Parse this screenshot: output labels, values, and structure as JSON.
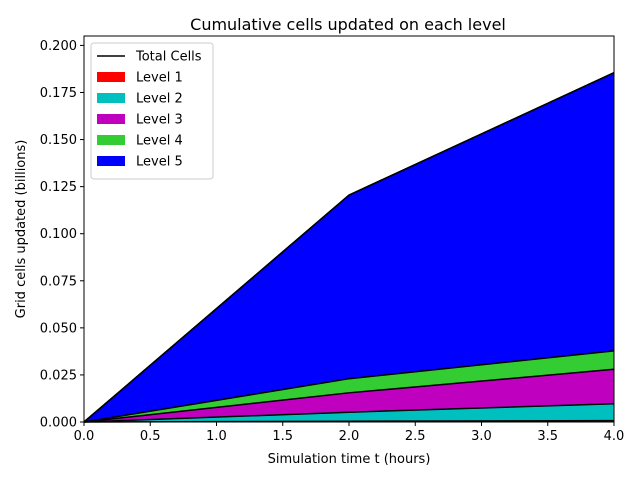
{
  "chart_data": {
    "type": "area",
    "title": "Cumulative cells updated on each level",
    "xlabel": "Simulation time t (hours)",
    "ylabel": "Grid cells updated (billions)",
    "xlim": [
      0.0,
      4.0
    ],
    "ylim": [
      0.0,
      0.205
    ],
    "x": [
      0.0,
      2.0,
      4.0
    ],
    "xticks": [
      "0.0",
      "0.5",
      "1.0",
      "1.5",
      "2.0",
      "2.5",
      "3.0",
      "3.5",
      "4.0"
    ],
    "yticks": [
      "0.000",
      "0.025",
      "0.050",
      "0.075",
      "0.100",
      "0.125",
      "0.150",
      "0.175",
      "0.200"
    ],
    "stacked": true,
    "grid": false,
    "legend_position": "top-left",
    "total": {
      "name": "Total Cells",
      "color": "#000000",
      "values": [
        0.0,
        0.1205,
        0.1855
      ]
    },
    "series": [
      {
        "name": "Level 1",
        "color": "#ff0000",
        "values": [
          0.0,
          0.0004,
          0.0007
        ]
      },
      {
        "name": "Level 2",
        "color": "#00bfbf",
        "values": [
          0.0,
          0.0048,
          0.009
        ]
      },
      {
        "name": "Level 3",
        "color": "#bf00bf",
        "values": [
          0.0,
          0.0103,
          0.0183
        ]
      },
      {
        "name": "Level 4",
        "color": "#33cc33",
        "values": [
          0.0,
          0.0075,
          0.0098
        ]
      },
      {
        "name": "Level 5",
        "color": "#0000ff",
        "values": [
          0.0,
          0.0975,
          0.1477
        ]
      }
    ]
  }
}
